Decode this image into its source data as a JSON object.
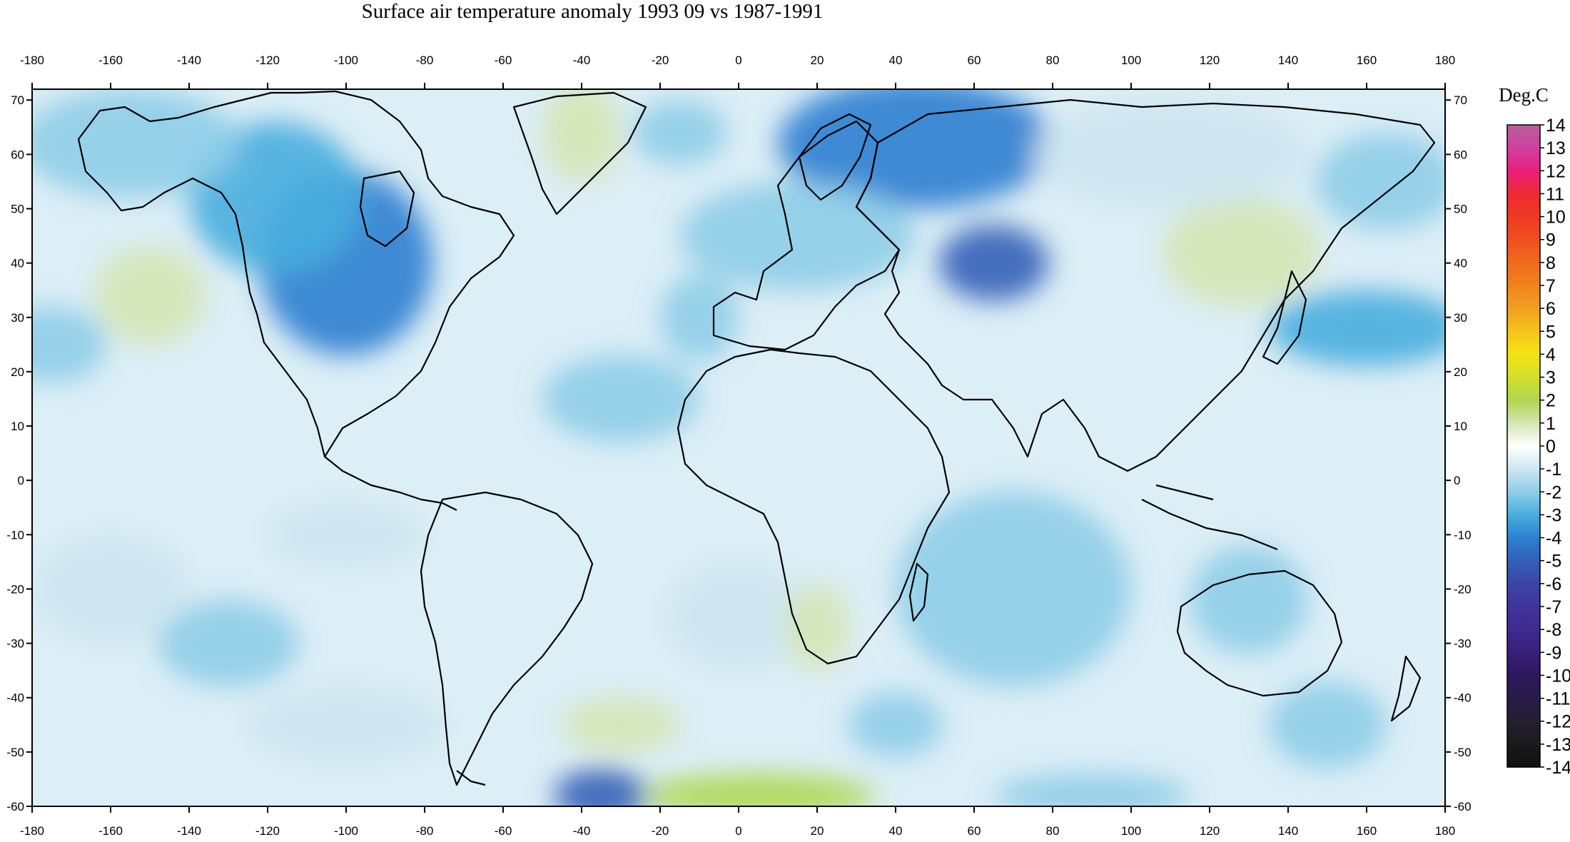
{
  "title": "Surface air temperature anomaly 1993 09 vs 1987-1991",
  "colorbar": {
    "unit_label": "Deg.C",
    "levels": [
      "14",
      "13",
      "12",
      "11",
      "10",
      "9",
      "8",
      "7",
      "6",
      "5",
      "4",
      "3",
      "2",
      "1",
      "0",
      "-1",
      "-2",
      "-3",
      "-4",
      "-5",
      "-6",
      "-7",
      "-8",
      "-9",
      "-10",
      "-11",
      "-12",
      "-13",
      "-14"
    ],
    "colors": [
      "#b8609a",
      "#d040a0",
      "#e8207a",
      "#ee2a34",
      "#ee3a24",
      "#f05020",
      "#f06a1e",
      "#f0841e",
      "#f0a020",
      "#f4c41a",
      "#f4e414",
      "#d2e02c",
      "#b0d650",
      "#d4e6b4",
      "#ffffff",
      "#cde6f0",
      "#8ecde8",
      "#48aede",
      "#2c80d0",
      "#3360b8",
      "#3c44a6",
      "#40349c",
      "#3e2a8e",
      "#381f78",
      "#2e185e",
      "#281c48",
      "#242030",
      "#1a1a1c",
      "#101010"
    ]
  },
  "axes": {
    "lon_ticks": [
      "-180",
      "-160",
      "-140",
      "-120",
      "-100",
      "-80",
      "-60",
      "-40",
      "-20",
      "0",
      "20",
      "40",
      "60",
      "80",
      "100",
      "120",
      "140",
      "160",
      "180"
    ],
    "lat_ticks": [
      "70",
      "60",
      "50",
      "40",
      "30",
      "20",
      "10",
      "0",
      "-10",
      "-20",
      "-30",
      "-40",
      "-50",
      "-60"
    ],
    "lon_range": [
      -180,
      180
    ],
    "lat_range": [
      -60,
      72
    ]
  },
  "anomaly_regions": [
    {
      "lon": -100,
      "lat": 40,
      "r_lon": 22,
      "r_lat": 17,
      "value": -4
    },
    {
      "lon": -118,
      "lat": 52,
      "r_lon": 22,
      "r_lat": 14,
      "value": -3
    },
    {
      "lon": -155,
      "lat": 62,
      "r_lon": 28,
      "r_lat": 10,
      "value": -2
    },
    {
      "lon": -150,
      "lat": 34,
      "r_lon": 14,
      "r_lat": 9,
      "value": 1
    },
    {
      "lon": -175,
      "lat": 25,
      "r_lon": 14,
      "r_lat": 7,
      "value": -2
    },
    {
      "lon": -40,
      "lat": 64,
      "r_lon": 10,
      "r_lat": 9,
      "value": 1
    },
    {
      "lon": -15,
      "lat": 64,
      "r_lon": 12,
      "r_lat": 6,
      "value": -2
    },
    {
      "lon": 45,
      "lat": 62,
      "r_lon": 35,
      "r_lat": 12,
      "value": -4
    },
    {
      "lon": 65,
      "lat": 40,
      "r_lon": 14,
      "r_lat": 7,
      "value": -5
    },
    {
      "lon": 15,
      "lat": 45,
      "r_lon": 30,
      "r_lat": 10,
      "value": -2
    },
    {
      "lon": -10,
      "lat": 30,
      "r_lon": 10,
      "r_lat": 8,
      "value": -2
    },
    {
      "lon": -30,
      "lat": 15,
      "r_lon": 20,
      "r_lat": 8,
      "value": -2
    },
    {
      "lon": 128,
      "lat": 42,
      "r_lon": 20,
      "r_lat": 10,
      "value": 1
    },
    {
      "lon": 160,
      "lat": 28,
      "r_lon": 25,
      "r_lat": 7,
      "value": -3
    },
    {
      "lon": 110,
      "lat": 60,
      "r_lon": 35,
      "r_lat": 10,
      "value": -1
    },
    {
      "lon": 165,
      "lat": 55,
      "r_lon": 18,
      "r_lat": 9,
      "value": -2
    },
    {
      "lon": 70,
      "lat": -20,
      "r_lon": 30,
      "r_lat": 18,
      "value": -2
    },
    {
      "lon": 0,
      "lat": -25,
      "r_lon": 18,
      "r_lat": 10,
      "value": -1
    },
    {
      "lon": 20,
      "lat": -27,
      "r_lon": 8,
      "r_lat": 8,
      "value": 1
    },
    {
      "lon": 130,
      "lat": -22,
      "r_lon": 15,
      "r_lat": 10,
      "value": -2
    },
    {
      "lon": -130,
      "lat": -30,
      "r_lon": 18,
      "r_lat": 8,
      "value": -2
    },
    {
      "lon": -160,
      "lat": -20,
      "r_lon": 20,
      "r_lat": 10,
      "value": -1
    },
    {
      "lon": -100,
      "lat": -45,
      "r_lon": 25,
      "r_lat": 7,
      "value": -1
    },
    {
      "lon": -35,
      "lat": -58,
      "r_lon": 12,
      "r_lat": 5,
      "value": -5
    },
    {
      "lon": 5,
      "lat": -58,
      "r_lon": 30,
      "r_lat": 4,
      "value": 2
    },
    {
      "lon": -30,
      "lat": -45,
      "r_lon": 15,
      "r_lat": 5,
      "value": 1
    },
    {
      "lon": 90,
      "lat": -58,
      "r_lon": 25,
      "r_lat": 4,
      "value": -2
    },
    {
      "lon": -100,
      "lat": -10,
      "r_lon": 20,
      "r_lat": 6,
      "value": -1
    },
    {
      "lon": 150,
      "lat": -45,
      "r_lon": 15,
      "r_lat": 8,
      "value": -2
    },
    {
      "lon": 40,
      "lat": -45,
      "r_lon": 12,
      "r_lat": 6,
      "value": -2
    }
  ]
}
